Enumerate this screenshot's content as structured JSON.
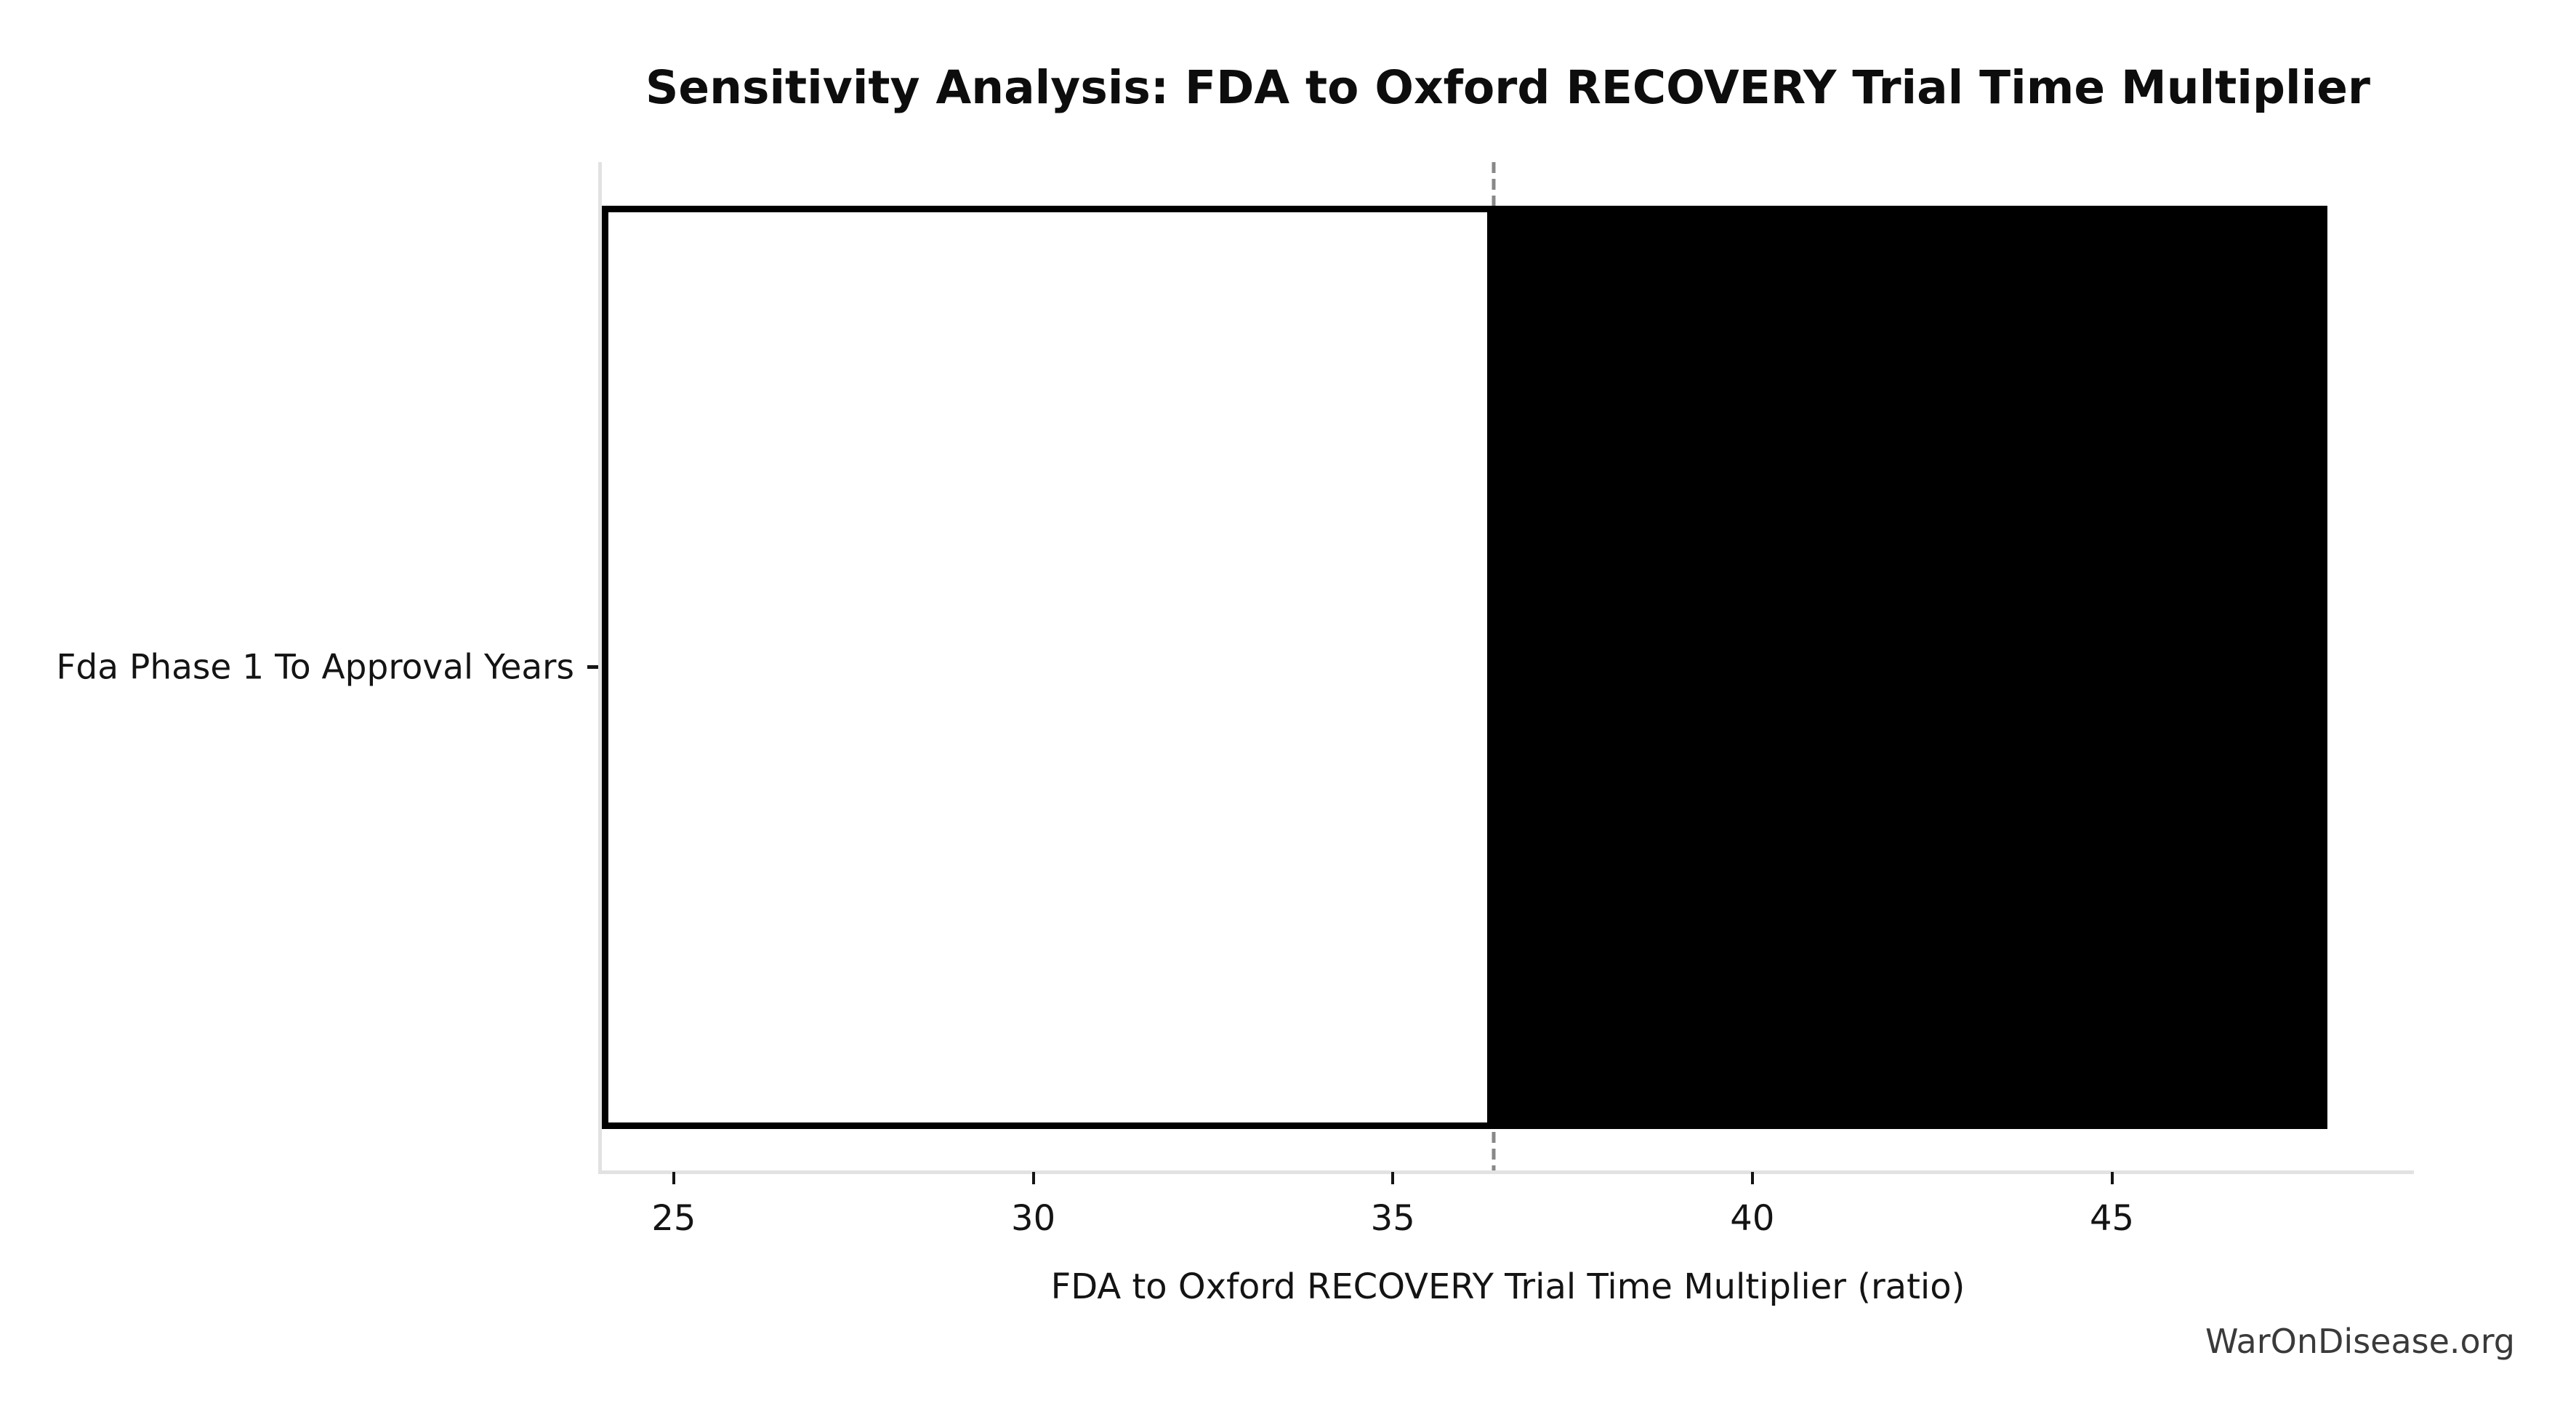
{
  "colors": {
    "background": "#ffffff",
    "title_text": "#0d0d0d",
    "axis_text": "#141414",
    "axis_spine": "#e2e2e2",
    "tick_mark": "#141414",
    "baseline_dashed": "#888888",
    "bar_low_fill": "#ffffff",
    "bar_high_fill": "#000000",
    "bar_edge": "#000000",
    "watermark_text": "#3a3a3a"
  },
  "chart_data": {
    "type": "bar",
    "subtype": "tornado-sensitivity",
    "orientation": "horizontal",
    "title": "Sensitivity Analysis: FDA to Oxford RECOVERY Trial Time Multiplier",
    "xlabel": "FDA to Oxford RECOVERY Trial Time Multiplier (ratio)",
    "ylabel": "",
    "categories": [
      "Fda Phase 1 To Approval Years"
    ],
    "series": [
      {
        "name": "low-to-base",
        "fill": "#ffffff",
        "edge": "#000000",
        "range": [
          24.0,
          36.4
        ]
      },
      {
        "name": "base-to-high",
        "fill": "#000000",
        "edge": "#000000",
        "range": [
          36.4,
          48.0
        ]
      }
    ],
    "parameter_bar": {
      "category": "Fda Phase 1 To Approval Years",
      "low": 24.0,
      "base": 36.4,
      "high": 48.0
    },
    "baseline_x": 36.4,
    "baseline_style": "dashed",
    "x_ticks": [
      25,
      30,
      35,
      40,
      45
    ],
    "xlim": [
      24.0,
      49.2
    ],
    "grid": false,
    "legend": false,
    "watermark": "WarOnDisease.org"
  }
}
